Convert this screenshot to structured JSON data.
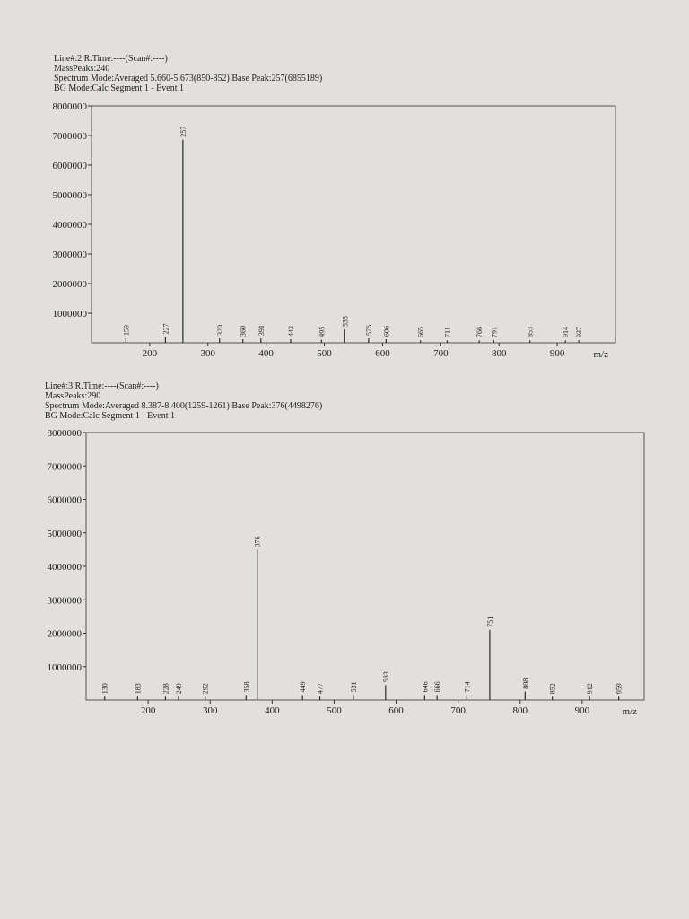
{
  "chart_data": [
    {
      "type": "bar",
      "header_lines": [
        "Line#:2  R.Time:----(Scan#:----)",
        "MassPeaks:240",
        "Spectrum Mode:Averaged 5.660-5.673(850-852)  Base Peak:257(6855189)",
        "BG Mode:Calc  Segment 1 - Event 1"
      ],
      "x_label": "m/z",
      "x": [
        159,
        227,
        257,
        320,
        360,
        391,
        442,
        495,
        535,
        576,
        606,
        665,
        711,
        766,
        791,
        853,
        914,
        937
      ],
      "values": [
        150000,
        200000,
        6855189,
        150000,
        120000,
        150000,
        120000,
        100000,
        450000,
        150000,
        120000,
        80000,
        80000,
        80000,
        80000,
        80000,
        80000,
        80000
      ],
      "xlim": [
        100,
        1000
      ],
      "ylim": [
        0,
        8000000
      ],
      "xticks": [
        200,
        300,
        400,
        500,
        600,
        700,
        800,
        900
      ],
      "yticks": [
        1000000,
        2000000,
        3000000,
        4000000,
        5000000,
        6000000,
        7000000,
        8000000
      ],
      "color": "#2a2a2a"
    },
    {
      "type": "bar",
      "header_lines": [
        "Line#:3  R.Time:----(Scan#:----)",
        "MassPeaks:290",
        "Spectrum Mode:Averaged 8.387-8.400(1259-1261)  Base Peak:376(4498276)",
        "BG Mode:Calc  Segment 1 - Event 1"
      ],
      "x_label": "m/z",
      "x": [
        130,
        183,
        228,
        249,
        292,
        358,
        376,
        449,
        477,
        531,
        583,
        646,
        666,
        714,
        751,
        808,
        852,
        912,
        959
      ],
      "values": [
        100000,
        100000,
        100000,
        100000,
        100000,
        150000,
        4498276,
        150000,
        100000,
        150000,
        450000,
        150000,
        150000,
        150000,
        2100000,
        250000,
        100000,
        100000,
        100000
      ],
      "xlim": [
        100,
        1000
      ],
      "ylim": [
        0,
        8000000
      ],
      "xticks": [
        200,
        300,
        400,
        500,
        600,
        700,
        800,
        900
      ],
      "yticks": [
        1000000,
        2000000,
        3000000,
        4000000,
        5000000,
        6000000,
        7000000,
        8000000
      ],
      "color": "#2a2a2a"
    }
  ]
}
